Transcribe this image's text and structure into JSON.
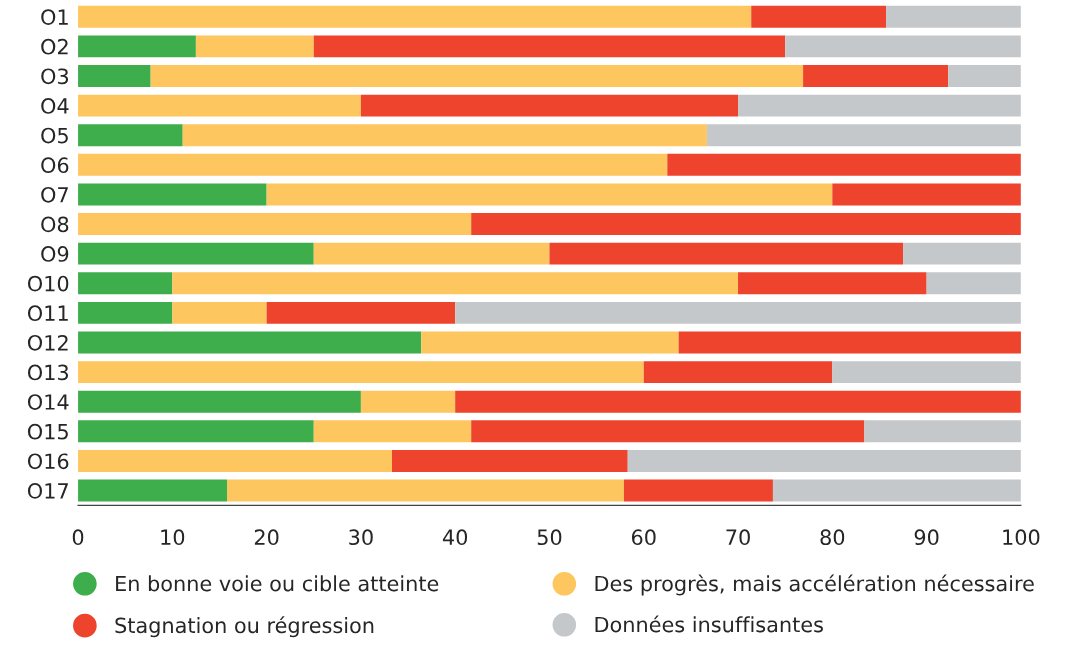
{
  "chart_data": {
    "type": "bar",
    "orientation": "horizontal",
    "stacked": true,
    "legend": "bottom",
    "grid": false,
    "categories": [
      "O1",
      "O2",
      "O3",
      "O4",
      "O5",
      "O6",
      "O7",
      "O8",
      "O9",
      "O10",
      "O11",
      "O12",
      "O13",
      "O14",
      "O15",
      "O16",
      "O17"
    ],
    "xlim": [
      0,
      100
    ],
    "xticks": [
      0,
      10,
      20,
      30,
      40,
      50,
      60,
      70,
      80,
      90,
      100
    ],
    "series": [
      {
        "name": "En bonne voie ou cible atteinte",
        "color": "#3dae4b",
        "values": [
          0,
          12.5,
          7.7,
          0,
          11.1,
          0,
          20,
          0,
          25,
          10,
          10,
          36.4,
          0,
          30,
          25,
          0,
          15.8
        ]
      },
      {
        "name": "Des progrès, mais accélération nécessaire",
        "color": "#fdc65e",
        "values": [
          71.4,
          12.5,
          69.2,
          30,
          55.6,
          62.5,
          60,
          41.7,
          25,
          60,
          10,
          27.3,
          60,
          10,
          16.7,
          33.3,
          42.1
        ]
      },
      {
        "name": "Stagnation ou régression",
        "color": "#ee432c",
        "values": [
          14.3,
          50,
          15.4,
          40,
          0,
          37.5,
          20,
          58.3,
          37.5,
          20,
          20,
          36.4,
          20,
          60,
          41.7,
          25,
          15.8
        ]
      },
      {
        "name": "Données insuffisantes",
        "color": "#c5c8cb",
        "values": [
          14.3,
          25,
          7.7,
          30,
          33.3,
          0,
          0,
          0,
          12.5,
          10,
          60,
          0,
          20,
          0,
          16.7,
          41.7,
          26.3
        ]
      }
    ]
  }
}
